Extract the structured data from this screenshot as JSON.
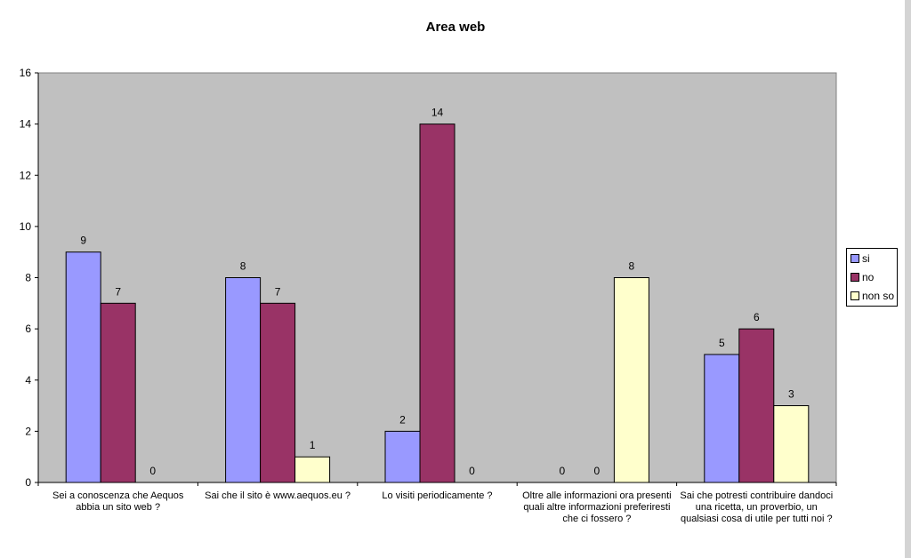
{
  "chart_data": {
    "type": "bar",
    "title": "Area web",
    "categories": [
      "Sei a conoscenza che Aequos abbia un sito web  ?",
      "Sai che il sito è www.aequos.eu  ?",
      "Lo visiti periodicamente  ?",
      "Oltre alle informazioni ora presenti quali altre informazioni preferiresti che ci fossero  ?",
      "Sai che potresti contribuire dandoci una ricetta, un proverbio, un qualsiasi cosa di utile per tutti noi  ?"
    ],
    "series": [
      {
        "name": "si",
        "values": [
          9,
          8,
          2,
          0,
          5
        ],
        "color": "#9999ff"
      },
      {
        "name": "no",
        "values": [
          7,
          7,
          14,
          0,
          6
        ],
        "color": "#993366"
      },
      {
        "name": "non so",
        "values": [
          0,
          1,
          0,
          8,
          3
        ],
        "color": "#ffffcc"
      }
    ],
    "ylim": [
      0,
      16
    ],
    "yticks": [
      0,
      2,
      4,
      6,
      8,
      10,
      12,
      14,
      16
    ],
    "xlabel": "",
    "ylabel": "",
    "plot_background": "#c0c0c0",
    "grid": false,
    "legend_position": "right"
  }
}
